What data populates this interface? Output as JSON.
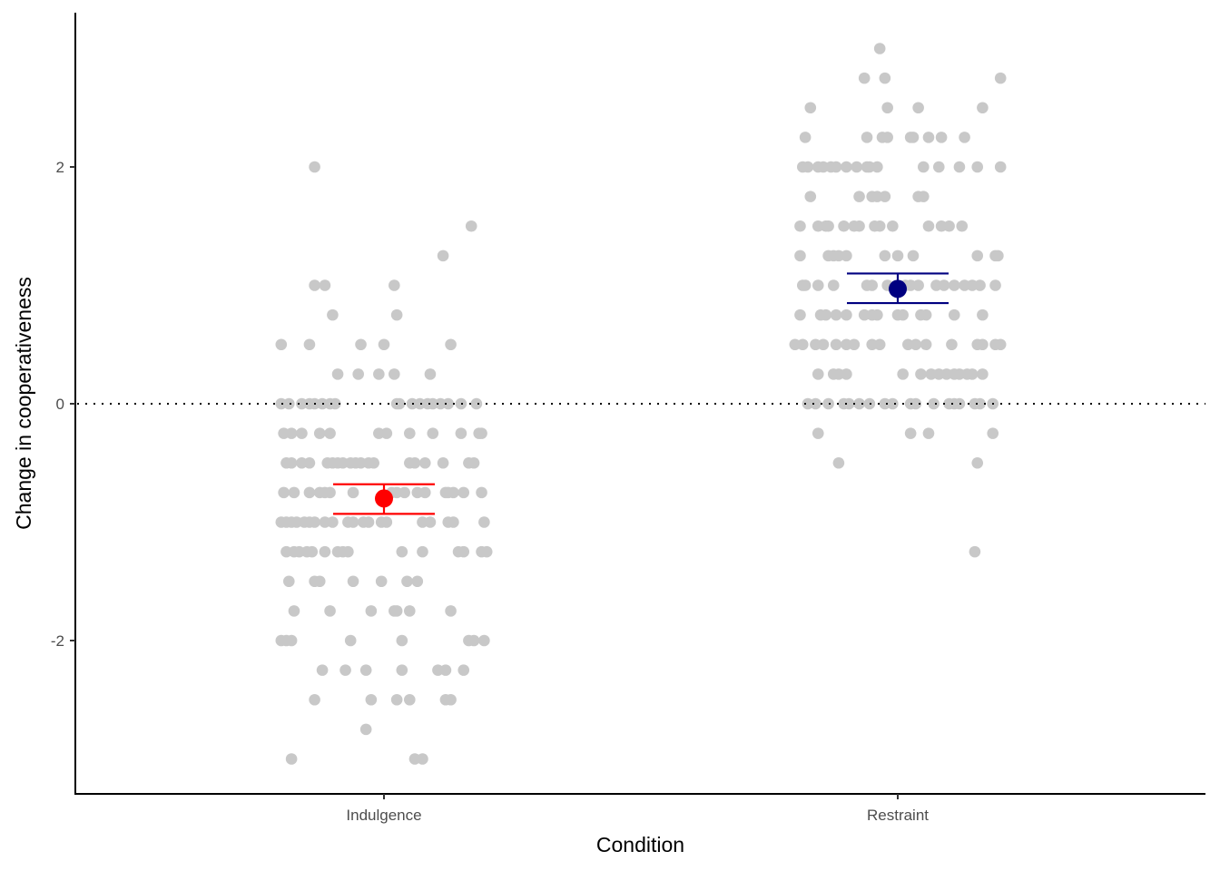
{
  "chart_data": {
    "type": "scatter",
    "title": "",
    "xlabel": "Condition",
    "ylabel": "Change in cooperativeness",
    "categories": [
      "Indulgence",
      "Restraint"
    ],
    "ylim": [
      -3.3,
      3.3
    ],
    "yticks": [
      -2,
      0,
      2
    ],
    "ytick_labels": [
      "-2",
      "0",
      "2"
    ],
    "reference_line": {
      "y": 0,
      "style": "dotted",
      "color": "#000000"
    },
    "grid": false,
    "legend": "none",
    "point_color": "#c8c8c8",
    "summary": [
      {
        "category": "Indulgence",
        "mean": -0.8,
        "lower": -0.93,
        "upper": -0.68,
        "color": "#ff0000"
      },
      {
        "category": "Restraint",
        "mean": 0.97,
        "lower": 0.85,
        "upper": 1.1,
        "color": "#000080"
      }
    ],
    "points": {
      "Indulgence": {
        "jitter_offsets": {
          "2": [
            -0.27
          ],
          "1.5": [
            0.34
          ],
          "1.25": [
            0.23
          ],
          "1": [
            -0.27,
            -0.23,
            0.04
          ],
          "0.75": [
            -0.2,
            0.05
          ],
          "0.5": [
            -0.4,
            -0.29,
            -0.09,
            0.0,
            0.26
          ],
          "0.25": [
            -0.18,
            -0.1,
            -0.02,
            0.04,
            0.18
          ],
          "0": [
            -0.4,
            -0.37,
            -0.32,
            -0.29,
            -0.27,
            -0.24,
            -0.21,
            -0.19,
            0.05,
            0.06,
            0.11,
            0.14,
            0.17,
            0.19,
            0.22,
            0.25,
            0.3,
            0.36
          ],
          "-0.25": [
            -0.39,
            -0.36,
            -0.32,
            -0.25,
            -0.21,
            -0.02,
            0.01,
            0.1,
            0.19,
            0.3,
            0.37,
            0.38
          ],
          "-0.5": [
            -0.38,
            -0.36,
            -0.32,
            -0.29,
            -0.22,
            -0.2,
            -0.18,
            -0.16,
            -0.13,
            -0.11,
            -0.09,
            -0.06,
            -0.04,
            0.1,
            0.12,
            0.16,
            0.23,
            0.33,
            0.35
          ],
          "-0.75": [
            -0.39,
            -0.35,
            -0.29,
            -0.25,
            -0.23,
            -0.21,
            -0.12,
            0.03,
            0.05,
            0.08,
            0.13,
            0.16,
            0.24,
            0.25,
            0.27,
            0.31,
            0.38
          ],
          "-1": [
            -0.4,
            -0.38,
            -0.36,
            -0.34,
            -0.31,
            -0.29,
            -0.27,
            -0.23,
            -0.2,
            -0.14,
            -0.12,
            -0.08,
            -0.06,
            -0.01,
            0.01,
            0.15,
            0.18,
            0.25,
            0.27,
            0.39
          ],
          "-1.25": [
            -0.38,
            -0.35,
            -0.33,
            -0.3,
            -0.28,
            -0.23,
            -0.18,
            -0.16,
            -0.14,
            0.07,
            0.15,
            0.29,
            0.31,
            0.38,
            0.4
          ],
          "-1.5": [
            -0.37,
            -0.27,
            -0.25,
            -0.12,
            -0.01,
            0.09,
            0.13
          ],
          "-1.75": [
            -0.35,
            -0.21,
            -0.05,
            0.04,
            0.05,
            0.1,
            0.26
          ],
          "-2": [
            -0.4,
            -0.38,
            -0.36,
            -0.13,
            0.07,
            0.33,
            0.35,
            0.39
          ],
          "-2.25": [
            -0.24,
            -0.15,
            -0.07,
            0.07,
            0.21,
            0.24,
            0.31
          ],
          "-2.5": [
            -0.27,
            -0.05,
            0.05,
            0.1,
            0.24,
            0.26
          ],
          "-2.75": [
            -0.07
          ],
          "-3": [
            -0.36,
            0.12,
            0.15
          ]
        }
      },
      "Restraint": {
        "jitter_offsets": {
          "3": [
            -0.07
          ],
          "2.75": [
            -0.13,
            -0.05,
            0.4
          ],
          "2.5": [
            -0.34,
            -0.04,
            0.08,
            0.33
          ],
          "2.25": [
            -0.36,
            -0.12,
            -0.06,
            -0.04,
            0.05,
            0.06,
            0.12,
            0.17,
            0.26
          ],
          "2": [
            -0.37,
            -0.35,
            -0.31,
            -0.29,
            -0.26,
            -0.24,
            -0.2,
            -0.16,
            -0.12,
            -0.11,
            -0.08,
            0.1,
            0.16,
            0.24,
            0.31,
            0.4
          ],
          "1.75": [
            -0.34,
            -0.15,
            -0.1,
            -0.08,
            -0.05,
            0.08,
            0.1
          ],
          "1.5": [
            -0.38,
            -0.31,
            -0.28,
            -0.27,
            -0.21,
            -0.17,
            -0.15,
            -0.09,
            -0.07,
            -0.02,
            0.12,
            0.17,
            0.2,
            0.25
          ],
          "1.25": [
            -0.38,
            -0.27,
            -0.25,
            -0.23,
            -0.2,
            -0.05,
            0.0,
            0.06,
            0.31,
            0.38,
            0.39
          ],
          "1": [
            -0.37,
            -0.36,
            -0.31,
            -0.25,
            -0.12,
            -0.1,
            -0.04,
            0.03,
            0.05,
            0.08,
            0.15,
            0.18,
            0.22,
            0.26,
            0.29,
            0.32,
            0.38
          ],
          "0.75": [
            -0.38,
            -0.3,
            -0.28,
            -0.24,
            -0.2,
            -0.13,
            -0.1,
            -0.08,
            0.0,
            0.02,
            0.09,
            0.11,
            0.22,
            0.33
          ],
          "0.5": [
            -0.4,
            -0.37,
            -0.32,
            -0.29,
            -0.24,
            -0.2,
            -0.17,
            -0.1,
            -0.07,
            0.04,
            0.07,
            0.11,
            0.21,
            0.31,
            0.33,
            0.38,
            0.4
          ],
          "0.25": [
            -0.31,
            -0.25,
            -0.23,
            -0.2,
            0.02,
            0.09,
            0.13,
            0.16,
            0.19,
            0.22,
            0.24,
            0.27,
            0.29,
            0.33
          ],
          "0": [
            -0.35,
            -0.32,
            -0.27,
            -0.21,
            -0.19,
            -0.15,
            -0.11,
            -0.05,
            -0.02,
            0.05,
            0.07,
            0.14,
            0.2,
            0.22,
            0.24,
            0.3,
            0.32,
            0.37
          ],
          "-0.25": [
            -0.31,
            0.05,
            0.12,
            0.37
          ],
          "-0.5": [
            -0.23,
            0.31
          ],
          "-1.25": [
            0.3
          ]
        }
      }
    }
  }
}
